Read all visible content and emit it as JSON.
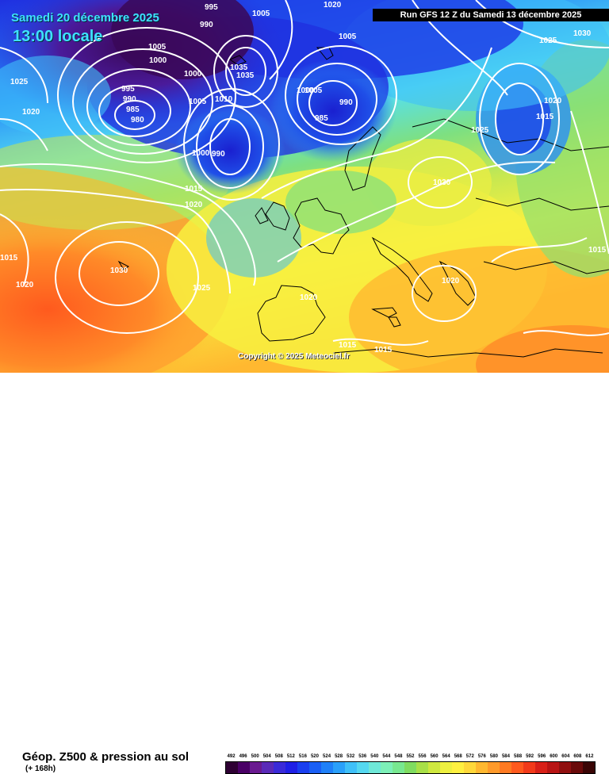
{
  "header": {
    "valid_date": "Samedi 20 décembre 2025",
    "valid_time": "13:00 locale",
    "run_info": "Run GFS 12 Z du Samedi 13 décembre 2025"
  },
  "copyright": "Copyright © 2025 Meteociel.fr",
  "legend": {
    "title": "Géop. Z500 & pression au sol",
    "lead_time": "(+ 168h)",
    "scale_values": [
      "492",
      "496",
      "500",
      "504",
      "508",
      "512",
      "516",
      "520",
      "524",
      "528",
      "532",
      "536",
      "540",
      "544",
      "548",
      "552",
      "556",
      "560",
      "564",
      "568",
      "572",
      "576",
      "580",
      "584",
      "588",
      "592",
      "596",
      "600",
      "604",
      "608",
      "612"
    ],
    "scale_colors": [
      "#2e0033",
      "#4a0066",
      "#6a1a90",
      "#5a2ab8",
      "#3a2ad8",
      "#1f1fe6",
      "#1a3ff0",
      "#1a5ff5",
      "#1f80f8",
      "#2aa0fa",
      "#3fc0f8",
      "#55d8f0",
      "#6fe8d8",
      "#7df0b8",
      "#78e890",
      "#7fdc60",
      "#a8e048",
      "#cfe83f",
      "#eef040",
      "#fff040",
      "#ffd83a",
      "#ffb830",
      "#ff9a2a",
      "#ff7a22",
      "#ff5a1e",
      "#f23a1a",
      "#d82018",
      "#b81414",
      "#901010",
      "#6a0a0a",
      "#3a0505"
    ]
  },
  "map_colors": {
    "deep_low": "#3a0858",
    "low": "#1f2fe0",
    "mid_blue": "#2a8ff8",
    "cyan": "#55e0f0",
    "green": "#7ee080",
    "lime": "#c8e850",
    "yellow": "#f8f040",
    "orange": "#ffa030",
    "red_orange": "#ff6a20",
    "isobar": "#ffffff",
    "coast": "#000000"
  },
  "pressure_labels": [
    {
      "text": "995"
    },
    {
      "text": "1005"
    },
    {
      "text": "1020"
    },
    {
      "text": "990"
    },
    {
      "text": "1005"
    },
    {
      "text": "1000"
    },
    {
      "text": "1025"
    },
    {
      "text": "1020"
    },
    {
      "text": "995"
    },
    {
      "text": "990"
    },
    {
      "text": "985"
    },
    {
      "text": "980"
    },
    {
      "text": "1000"
    },
    {
      "text": "1005"
    },
    {
      "text": "1010"
    },
    {
      "text": "1035"
    },
    {
      "text": "1035"
    },
    {
      "text": "1000"
    },
    {
      "text": "1005"
    },
    {
      "text": "990"
    },
    {
      "text": "985"
    },
    {
      "text": "1005"
    },
    {
      "text": "1025"
    },
    {
      "text": "1030"
    },
    {
      "text": "1020"
    },
    {
      "text": "1015"
    },
    {
      "text": "1025"
    },
    {
      "text": "1000"
    },
    {
      "text": "990"
    },
    {
      "text": "1015"
    },
    {
      "text": "1020"
    },
    {
      "text": "1030"
    },
    {
      "text": "1015"
    },
    {
      "text": "1020"
    },
    {
      "text": "1030"
    },
    {
      "text": "1025"
    },
    {
      "text": "1020"
    },
    {
      "text": "1020"
    },
    {
      "text": "1015"
    },
    {
      "text": "1015"
    },
    {
      "text": "1015"
    }
  ]
}
